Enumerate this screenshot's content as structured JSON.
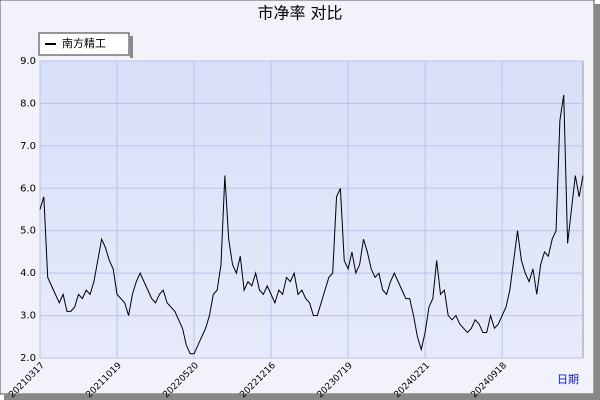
{
  "chart_data": {
    "type": "line",
    "title": "市净率  对比",
    "x_label": "日期",
    "categories": [
      "20210317",
      null,
      null,
      null,
      null,
      null,
      null,
      null,
      null,
      null,
      null,
      null,
      null,
      null,
      null,
      null,
      null,
      null,
      null,
      null,
      "20211019",
      null,
      null,
      null,
      null,
      null,
      null,
      null,
      null,
      null,
      null,
      null,
      null,
      null,
      null,
      null,
      null,
      null,
      null,
      null,
      "20220520",
      null,
      null,
      null,
      null,
      null,
      null,
      null,
      null,
      null,
      null,
      null,
      null,
      null,
      null,
      null,
      null,
      null,
      null,
      null,
      "20221216",
      null,
      null,
      null,
      null,
      null,
      null,
      null,
      null,
      null,
      null,
      null,
      null,
      null,
      null,
      null,
      null,
      null,
      null,
      null,
      "20230719",
      null,
      null,
      null,
      null,
      null,
      null,
      null,
      null,
      null,
      null,
      null,
      null,
      null,
      null,
      null,
      null,
      null,
      null,
      null,
      "20240221",
      null,
      null,
      null,
      null,
      null,
      null,
      null,
      null,
      null,
      null,
      null,
      null,
      null,
      null,
      null,
      null,
      null,
      null,
      null,
      "20240918",
      null,
      null,
      null,
      null,
      null,
      null,
      null,
      null,
      null,
      null,
      null,
      null,
      null,
      null,
      null,
      null,
      null,
      null,
      null,
      null,
      null
    ],
    "series": [
      {
        "name": "南方精工",
        "color": "#000000",
        "values": [
          5.5,
          5.8,
          3.9,
          3.7,
          3.5,
          3.3,
          3.5,
          3.1,
          3.1,
          3.2,
          3.5,
          3.4,
          3.6,
          3.5,
          3.8,
          4.3,
          4.8,
          4.6,
          4.3,
          4.1,
          3.5,
          3.4,
          3.3,
          3.0,
          3.5,
          3.8,
          4.0,
          3.8,
          3.6,
          3.4,
          3.3,
          3.5,
          3.6,
          3.3,
          3.2,
          3.1,
          2.9,
          2.7,
          2.3,
          2.1,
          2.1,
          2.3,
          2.5,
          2.7,
          3.0,
          3.5,
          3.6,
          4.2,
          6.3,
          4.8,
          4.2,
          4.0,
          4.4,
          3.6,
          3.8,
          3.7,
          4.0,
          3.6,
          3.5,
          3.7,
          3.5,
          3.3,
          3.6,
          3.5,
          3.9,
          3.8,
          4.0,
          3.5,
          3.6,
          3.4,
          3.3,
          3.0,
          3.0,
          3.3,
          3.6,
          3.9,
          4.0,
          5.8,
          6.0,
          4.3,
          4.1,
          4.5,
          4.0,
          4.2,
          4.8,
          4.5,
          4.1,
          3.9,
          4.0,
          3.6,
          3.5,
          3.8,
          4.0,
          3.8,
          3.6,
          3.4,
          3.4,
          3.0,
          2.5,
          2.2,
          2.6,
          3.2,
          3.4,
          4.3,
          3.5,
          3.6,
          3.0,
          2.9,
          3.0,
          2.8,
          2.7,
          2.6,
          2.7,
          2.9,
          2.8,
          2.6,
          2.6,
          3.0,
          2.7,
          2.8,
          3.0,
          3.2,
          3.6,
          4.3,
          5.0,
          4.3,
          4.0,
          3.8,
          4.1,
          3.5,
          4.2,
          4.5,
          4.4,
          4.8,
          5.0,
          7.6,
          8.2,
          4.7,
          5.5,
          6.3,
          5.8,
          6.3
        ]
      }
    ],
    "ylim": [
      2,
      9
    ],
    "yticks": [
      {
        "value": 2,
        "label": "2.0"
      },
      {
        "value": 3,
        "label": "3.0"
      },
      {
        "value": 4,
        "label": "4.0"
      },
      {
        "value": 5,
        "label": "5.0"
      },
      {
        "value": 6,
        "label": "6.0"
      },
      {
        "value": 7,
        "label": "7.0"
      },
      {
        "value": 8,
        "label": "8.0"
      },
      {
        "value": 9,
        "label": "9.0"
      }
    ],
    "grid": true
  }
}
